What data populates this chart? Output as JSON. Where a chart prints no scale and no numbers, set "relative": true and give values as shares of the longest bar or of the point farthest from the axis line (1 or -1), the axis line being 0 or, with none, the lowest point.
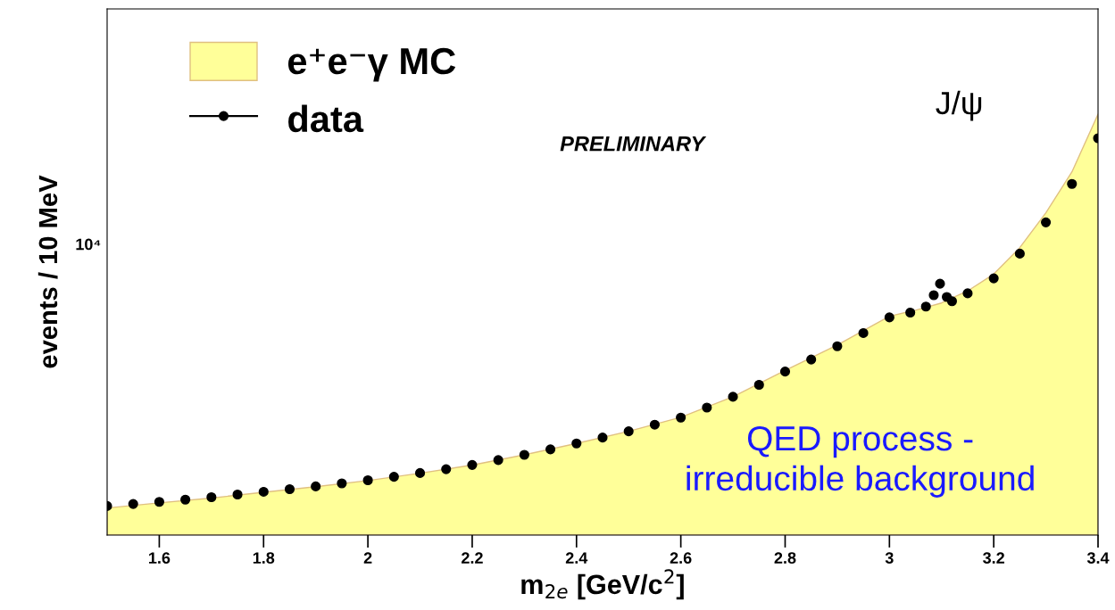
{
  "chart_data": {
    "type": "scatter",
    "relative": true,
    "xlabel": "m$_{2e}$ [GeV/c$^{2}$]",
    "ylabel": "events / 10 MeV",
    "legend": "top left",
    "grid": false,
    "xlim": [
      1.5,
      3.4
    ],
    "xticks": [
      1.6,
      1.8,
      2,
      2.2,
      2.4,
      2.6,
      2.8,
      3,
      3.2,
      3.4
    ],
    "series": [
      {
        "name": "e⁺e⁻γ MC",
        "type": "area",
        "color": "#ffff99",
        "x": [
          1.5,
          1.6,
          1.7,
          1.8,
          1.9,
          2.0,
          2.1,
          2.2,
          2.3,
          2.4,
          2.5,
          2.6,
          2.7,
          2.8,
          2.9,
          3.0,
          3.05,
          3.1,
          3.15,
          3.2,
          3.25,
          3.3,
          3.35,
          3.4
        ],
        "values": [
          0.0643,
          0.0766,
          0.088,
          0.1017,
          0.1149,
          0.1294,
          0.1469,
          0.1663,
          0.1906,
          0.2177,
          0.2466,
          0.28,
          0.3286,
          0.3914,
          0.4514,
          0.52,
          0.5343,
          0.5514,
          0.58,
          0.62,
          0.6829,
          0.7657,
          0.8629,
          1
        ]
      },
      {
        "name": "data",
        "color": "#000000",
        "marker": "circle",
        "x": [
          1.5,
          1.55,
          1.6,
          1.65,
          1.7,
          1.75,
          1.8,
          1.85,
          1.9,
          1.95,
          2.0,
          2.05,
          2.1,
          2.15,
          2.2,
          2.25,
          2.3,
          2.35,
          2.4,
          2.45,
          2.5,
          2.55,
          2.6,
          2.65,
          2.7,
          2.75,
          2.8,
          2.85,
          2.9,
          2.95,
          3.0,
          3.04,
          3.07,
          3.085,
          3.097,
          3.11,
          3.12,
          3.15,
          3.2,
          3.25,
          3.3,
          3.35,
          3.4
        ],
        "values": [
          0.0691,
          0.074,
          0.0789,
          0.0843,
          0.09,
          0.0963,
          0.1029,
          0.1091,
          0.1157,
          0.1229,
          0.1303,
          0.1386,
          0.1474,
          0.1566,
          0.1666,
          0.1783,
          0.1906,
          0.2037,
          0.2177,
          0.2317,
          0.2466,
          0.2623,
          0.2791,
          0.3029,
          0.3286,
          0.3571,
          0.3886,
          0.4171,
          0.4486,
          0.48,
          0.5171,
          0.5286,
          0.5429,
          0.57,
          0.5971,
          0.5657,
          0.5557,
          0.5743,
          0.61,
          0.6686,
          0.7429,
          0.8343,
          0.9429
        ]
      }
    ],
    "annotations": [
      "10⁴",
      "J/ψ",
      "PRELIMINARY",
      "QED process -\nirreducible background"
    ]
  }
}
